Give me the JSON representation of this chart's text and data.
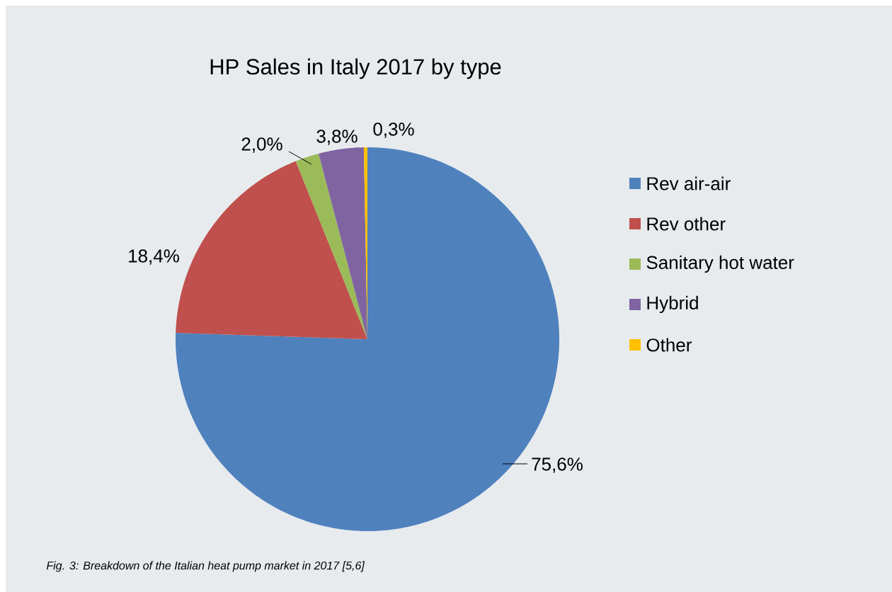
{
  "chart_data": {
    "type": "pie",
    "title": "HP Sales in Italy 2017 by type",
    "categories": [
      "Rev air-air",
      "Rev other",
      "Sanitary hot water",
      "Hybrid",
      "Other"
    ],
    "values": [
      75.6,
      18.4,
      2.0,
      3.8,
      0.3
    ],
    "colors": [
      "#4f81bd",
      "#c0504d",
      "#9bbb59",
      "#8064a2",
      "#ffc000"
    ],
    "value_labels": [
      "75,6%",
      "18,4%",
      "2,0%",
      "3,8%",
      "0,3%"
    ],
    "legend": "right",
    "annotations": [
      "Fig. 3: Breakdown of the Italian heat pump market in 2017 [5,6]"
    ]
  }
}
